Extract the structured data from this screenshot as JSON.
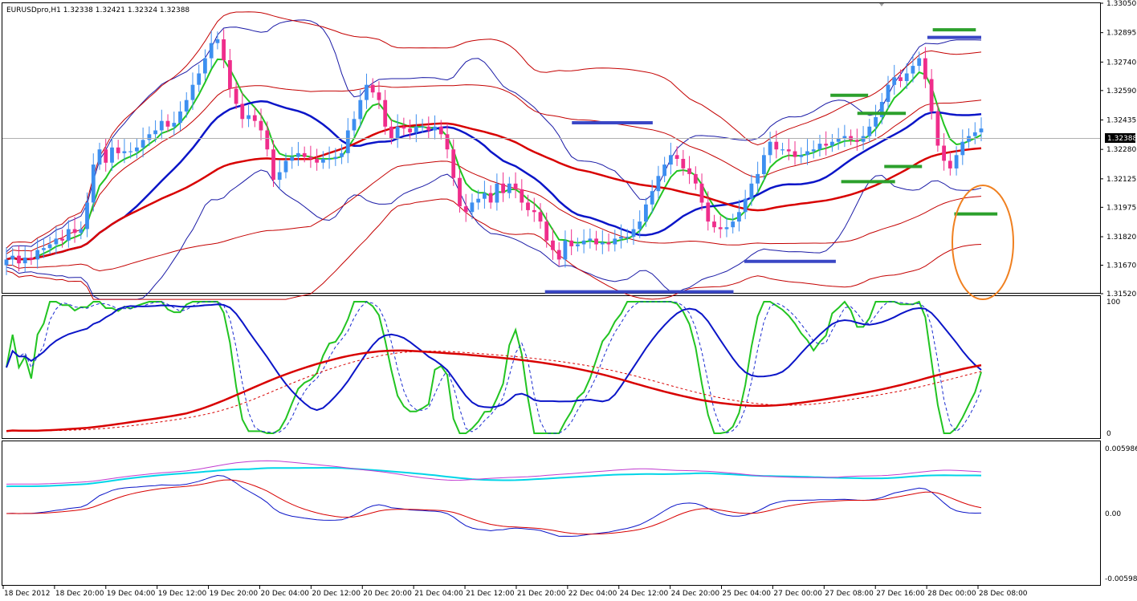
{
  "window": {
    "symbol_info": "EURUSDpro,H1  1.32338 1.32421 1.32324 1.32388",
    "current_price_label": "1.32388"
  },
  "colors": {
    "bull_candle": "#3d8ff0",
    "bear_candle": "#ef2d8b",
    "bb_inner": "#1a1aa6",
    "bb_outer": "#c40000",
    "ema_fast": "#22c422",
    "ma_mid": "#0b15c8",
    "ma_slow": "#d80000",
    "level_support": "#3a47c5",
    "level_resist": "#2ca02c",
    "highlight": "#f08020",
    "macd_signal": "#00d5e8",
    "macd_hist": "#c03ad0"
  },
  "chart_data": [
    {
      "type": "candlestick",
      "name": "EURUSDpro,H1",
      "ylim": [
        1.3152,
        1.3305
      ],
      "y_ticks": [
        "1.33050",
        "1.32895",
        "1.32740",
        "1.32590",
        "1.32435",
        "1.32280",
        "1.32125",
        "1.31975",
        "1.31820",
        "1.31670",
        "1.31520"
      ],
      "x_tick_labels": [
        "18 Dec 2012",
        "18 Dec 20:00",
        "19 Dec 04:00",
        "19 Dec 12:00",
        "19 Dec 20:00",
        "20 Dec 04:00",
        "20 Dec 12:00",
        "20 Dec 20:00",
        "21 Dec 04:00",
        "21 Dec 12:00",
        "21 Dec 20:00",
        "22 Dec 04:00",
        "24 Dec 12:00",
        "24 Dec 20:00",
        "25 Dec 04:00",
        "27 Dec 00:00",
        "27 Dec 08:00",
        "27 Dec 16:00",
        "28 Dec 00:00",
        "28 Dec 08:00"
      ],
      "close": [
        1.317,
        1.3172,
        1.3168,
        1.3171,
        1.317,
        1.3175,
        1.3176,
        1.3178,
        1.3181,
        1.318,
        1.3186,
        1.3184,
        1.3186,
        1.32,
        1.322,
        1.3228,
        1.3221,
        1.3229,
        1.3226,
        1.3227,
        1.3227,
        1.3229,
        1.3233,
        1.3236,
        1.3238,
        1.3243,
        1.324,
        1.3242,
        1.3248,
        1.3254,
        1.3262,
        1.3268,
        1.3276,
        1.3284,
        1.3286,
        1.3275,
        1.326,
        1.3252,
        1.3244,
        1.3246,
        1.3243,
        1.3238,
        1.3228,
        1.3212,
        1.3216,
        1.3222,
        1.3224,
        1.3226,
        1.3224,
        1.3223,
        1.3221,
        1.3223,
        1.3223,
        1.3224,
        1.3226,
        1.3238,
        1.3244,
        1.3254,
        1.3262,
        1.3258,
        1.3254,
        1.324,
        1.3234,
        1.324,
        1.3239,
        1.3237,
        1.324,
        1.324,
        1.3238,
        1.324,
        1.3236,
        1.3228,
        1.3213,
        1.3198,
        1.3195,
        1.32,
        1.3202,
        1.3205,
        1.32,
        1.321,
        1.3205,
        1.321,
        1.3207,
        1.32,
        1.3196,
        1.3195,
        1.319,
        1.318,
        1.3175,
        1.317,
        1.318,
        1.3177,
        1.3178,
        1.318,
        1.3181,
        1.3178,
        1.3179,
        1.3178,
        1.3181,
        1.3182,
        1.3182,
        1.3186,
        1.319,
        1.3199,
        1.3206,
        1.3214,
        1.322,
        1.3225,
        1.3223,
        1.3218,
        1.3215,
        1.321,
        1.32,
        1.319,
        1.3187,
        1.3186,
        1.3187,
        1.319,
        1.3195,
        1.3202,
        1.321,
        1.3215,
        1.3225,
        1.3232,
        1.3228,
        1.3228,
        1.3227,
        1.3224,
        1.3225,
        1.3227,
        1.3228,
        1.3231,
        1.323,
        1.3232,
        1.3234,
        1.3235,
        1.3233,
        1.3232,
        1.3235,
        1.324,
        1.3245,
        1.3253,
        1.3262,
        1.3266,
        1.3264,
        1.3268,
        1.3272,
        1.3276,
        1.3265,
        1.3248,
        1.323,
        1.3222,
        1.3218,
        1.3225,
        1.3232,
        1.3235,
        1.3237,
        1.3239
      ]
    },
    {
      "type": "line",
      "name": "oscillator",
      "ylim": [
        0,
        100
      ],
      "y_ticks": [
        "100",
        "0"
      ]
    },
    {
      "type": "line",
      "name": "macd",
      "ylim": [
        -0.00598,
        0.00598
      ],
      "y_ticks": [
        "0.005986",
        "0.00",
        "-0.005986"
      ]
    }
  ]
}
